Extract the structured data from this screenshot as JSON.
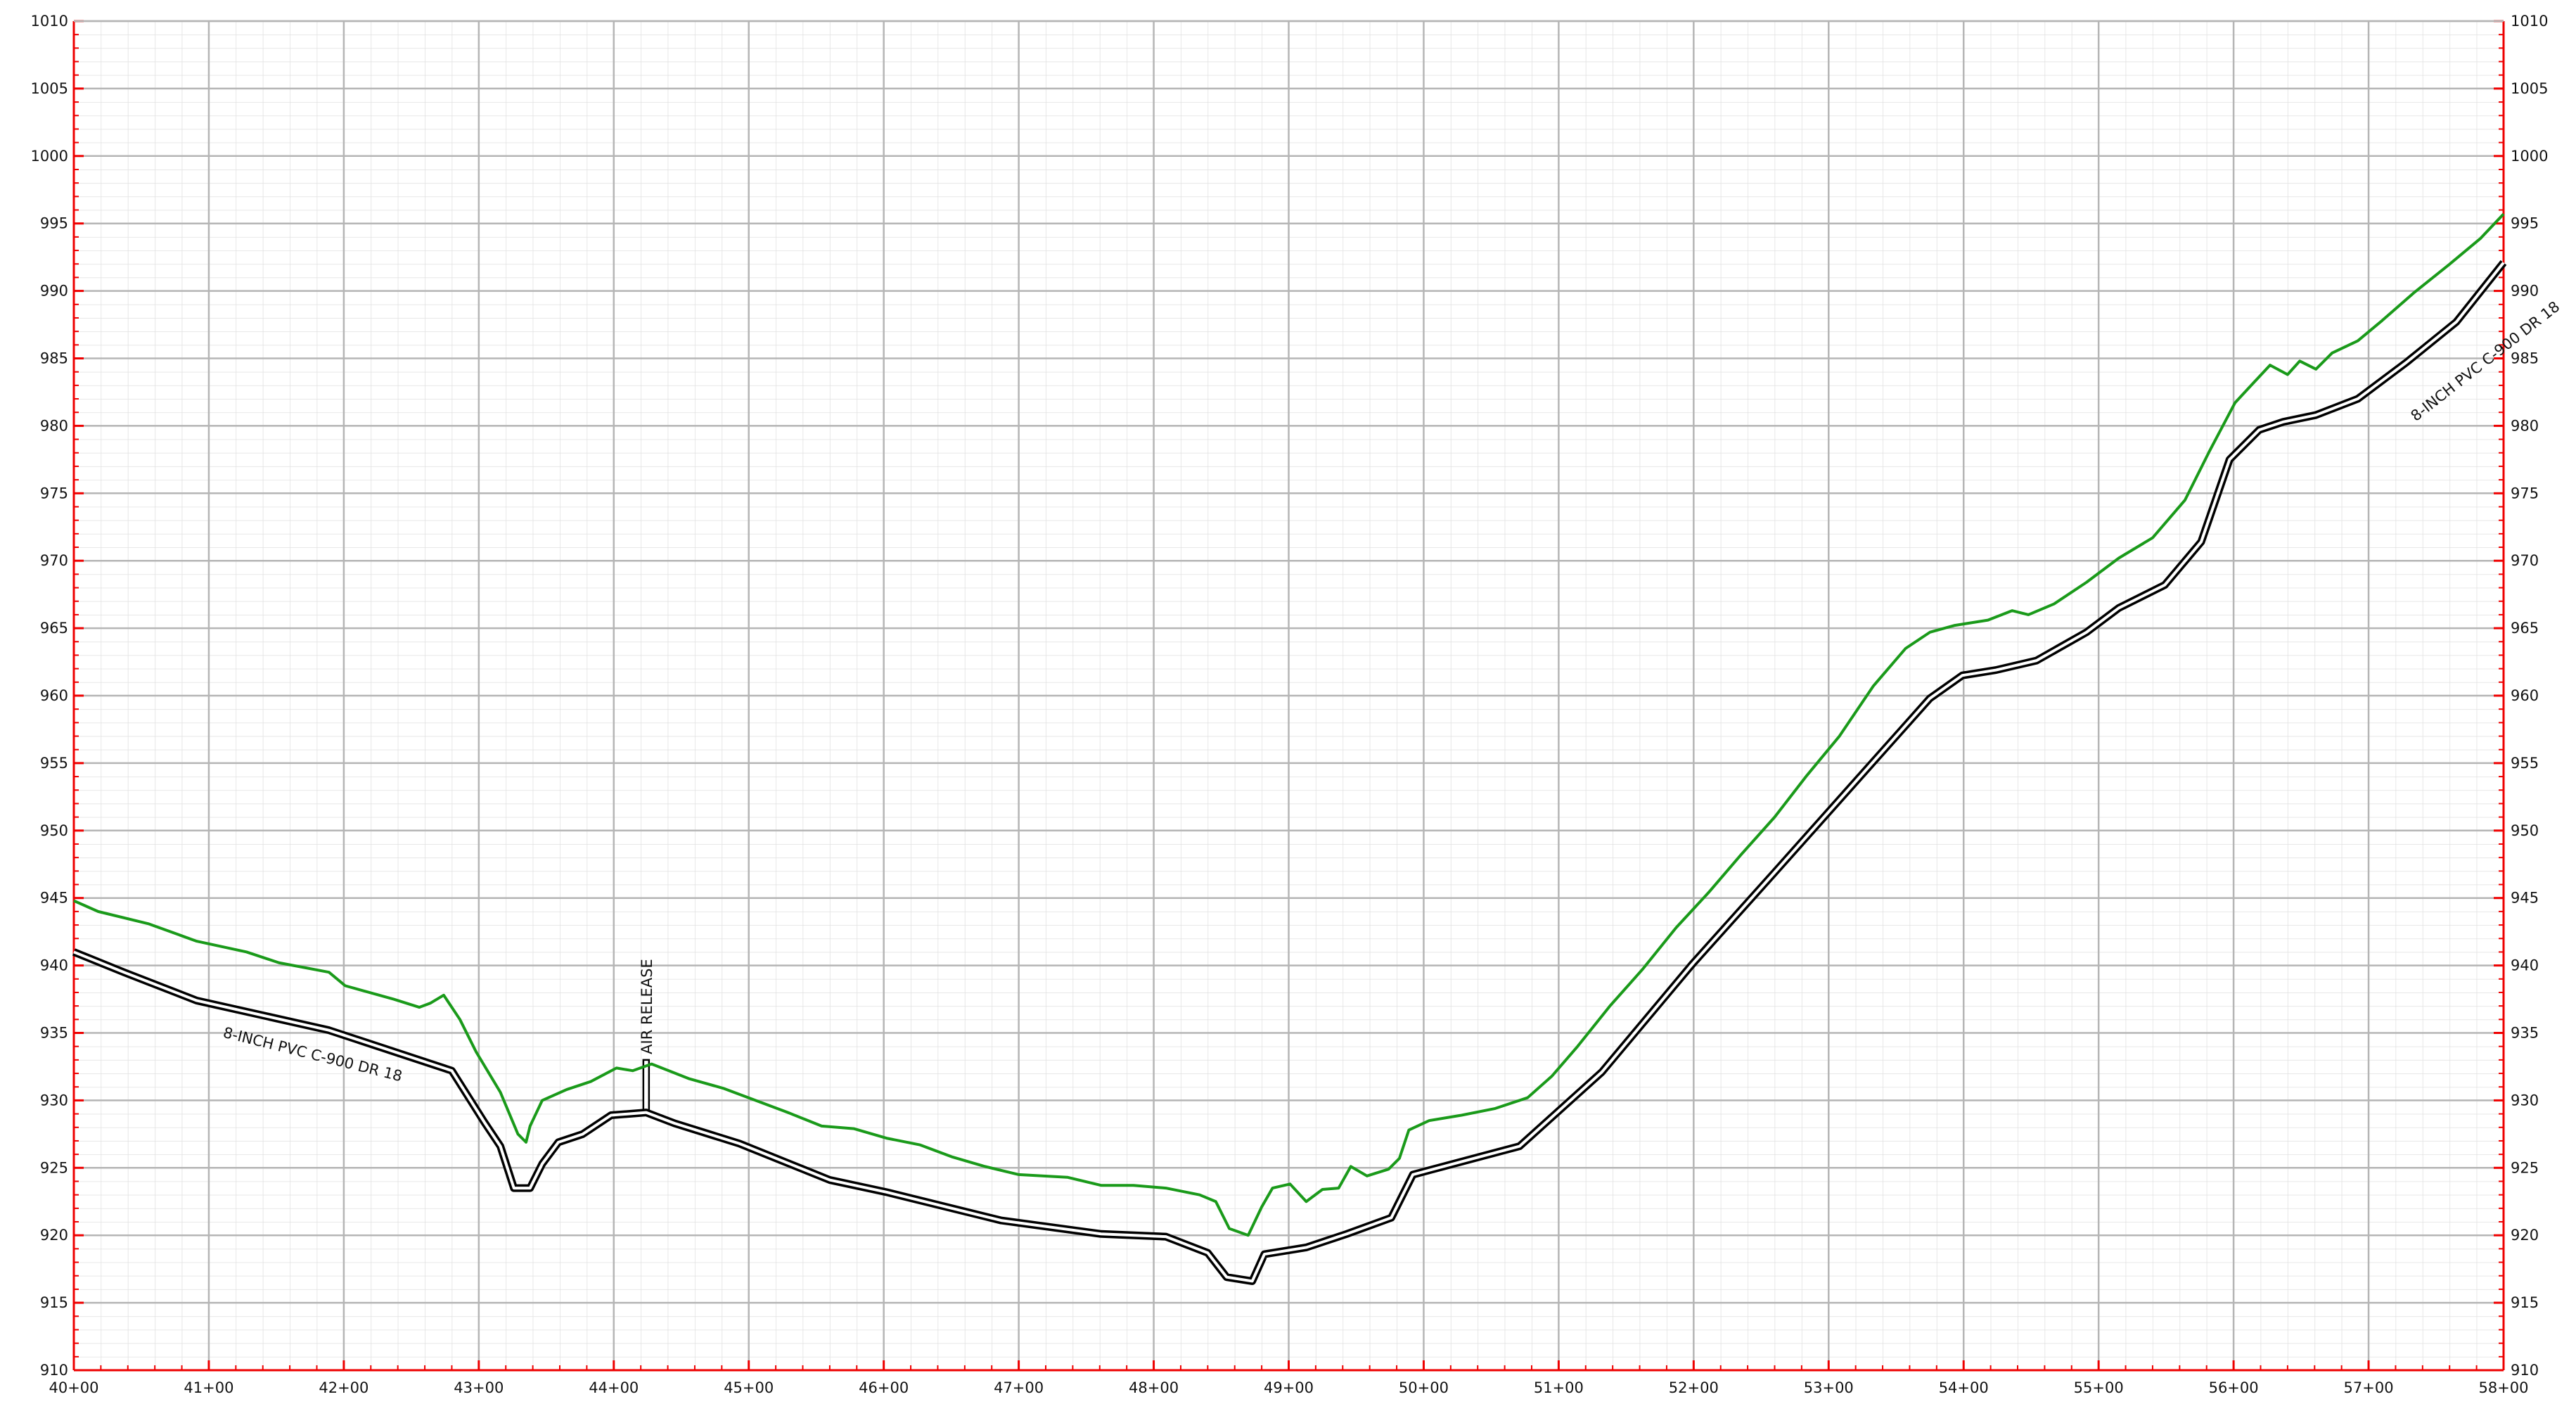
{
  "chart_data": {
    "type": "line",
    "xlim": [
      4000,
      5800
    ],
    "xticks": [
      {
        "value": 4000,
        "label": "40+00"
      },
      {
        "value": 4100,
        "label": "41+00"
      },
      {
        "value": 4200,
        "label": "42+00"
      },
      {
        "value": 4300,
        "label": "43+00"
      },
      {
        "value": 4400,
        "label": "44+00"
      },
      {
        "value": 4500,
        "label": "45+00"
      },
      {
        "value": 4600,
        "label": "46+00"
      },
      {
        "value": 4700,
        "label": "47+00"
      },
      {
        "value": 4800,
        "label": "48+00"
      },
      {
        "value": 4900,
        "label": "49+00"
      },
      {
        "value": 5000,
        "label": "50+00"
      },
      {
        "value": 5100,
        "label": "51+00"
      },
      {
        "value": 5200,
        "label": "52+00"
      },
      {
        "value": 5300,
        "label": "53+00"
      },
      {
        "value": 5400,
        "label": "54+00"
      },
      {
        "value": 5500,
        "label": "55+00"
      },
      {
        "value": 5600,
        "label": "56+00"
      },
      {
        "value": 5700,
        "label": "57+00"
      },
      {
        "value": 5800,
        "label": "58+00"
      }
    ],
    "ylim": [
      910,
      1010
    ],
    "yticks": [
      910,
      915,
      920,
      925,
      930,
      935,
      940,
      945,
      950,
      955,
      960,
      965,
      970,
      975,
      980,
      985,
      990,
      995,
      1000,
      1005,
      1010
    ],
    "grid": true,
    "series": [
      {
        "color": "#1a9a1a",
        "style": "single",
        "x": [
          4000,
          4018,
          4055,
          4091,
          4128,
          4152,
          4189,
          4201,
          4237,
          4256,
          4264,
          4274,
          4286,
          4298,
          4316,
          4329,
          4335,
          4338,
          4347,
          4365,
          4383,
          4402,
          4414,
          4428,
          4456,
          4481,
          4505,
          4529,
          4554,
          4578,
          4602,
          4627,
          4651,
          4675,
          4700,
          4736,
          4761,
          4785,
          4809,
          4834,
          4846,
          4856,
          4870,
          4880,
          4888,
          4901,
          4913,
          4925,
          4937,
          4946,
          4958,
          4974,
          4982,
          4989,
          5004,
          5028,
          5053,
          5077,
          5095,
          5114,
          5138,
          5162,
          5187,
          5211,
          5235,
          5260,
          5284,
          5308,
          5333,
          5357,
          5375,
          5393,
          5418,
          5436,
          5448,
          5467,
          5491,
          5515,
          5540,
          5564,
          5582,
          5601,
          5613,
          5627,
          5640,
          5649,
          5661,
          5673,
          5692,
          5710,
          5734,
          5759,
          5783,
          5800
        ],
        "values": [
          944.8,
          944,
          943.1,
          941.8,
          941,
          940.2,
          939.5,
          938.5,
          937.5,
          936.9,
          937.2,
          937.8,
          936,
          933.6,
          930.6,
          927.5,
          926.9,
          928.1,
          930,
          930.8,
          931.4,
          932.4,
          932.2,
          932.7,
          931.6,
          930.9,
          930,
          929.1,
          928.1,
          927.9,
          927.2,
          926.7,
          925.8,
          925.1,
          924.5,
          924.3,
          923.7,
          923.7,
          923.5,
          923,
          922.5,
          920.5,
          920,
          922.1,
          923.5,
          923.8,
          922.5,
          923.4,
          923.5,
          925.1,
          924.4,
          924.9,
          925.7,
          927.8,
          928.5,
          928.9,
          929.4,
          930.2,
          931.8,
          934,
          937,
          939.7,
          942.8,
          945.4,
          948.2,
          951,
          954.1,
          957,
          960.7,
          963.5,
          964.7,
          965.2,
          965.6,
          966.3,
          966,
          966.8,
          968.4,
          970.2,
          971.7,
          974.5,
          978.1,
          981.7,
          983,
          984.5,
          983.8,
          984.8,
          984.2,
          985.4,
          986.3,
          987.8,
          989.9,
          991.9,
          993.9,
          995.7
        ]
      },
      {
        "color": "#000000",
        "style": "double",
        "x": [
          4000,
          4037,
          4091,
          4189,
          4280,
          4304,
          4316,
          4326,
          4338,
          4347,
          4359,
          4377,
          4398,
          4424,
          4445,
          4493,
          4560,
          4602,
          4687,
          4761,
          4809,
          4840,
          4854,
          4873,
          4882,
          4913,
          4943,
          4976,
          4992,
          5071,
          5132,
          5199,
          5260,
          5375,
          5399,
          5424,
          5454,
          5491,
          5515,
          5549,
          5576,
          5597,
          5619,
          5637,
          5661,
          5692,
          5728,
          5765,
          5800
        ],
        "values": [
          941,
          939.5,
          937.4,
          935.2,
          932.2,
          928.4,
          926.6,
          923.5,
          923.5,
          925.3,
          926.9,
          927.5,
          928.9,
          929.1,
          928.3,
          926.8,
          924.1,
          923.2,
          921.1,
          920.1,
          919.9,
          918.7,
          916.9,
          916.6,
          918.6,
          919.1,
          920.1,
          921.3,
          924.5,
          926.6,
          932.1,
          940.1,
          946.9,
          959.8,
          961.5,
          961.9,
          962.6,
          964.7,
          966.5,
          968.2,
          971.4,
          977.5,
          979.7,
          980.3,
          980.8,
          982,
          984.7,
          987.7,
          992.1
        ]
      }
    ],
    "annotations": [
      {
        "text": "AIR RELEASE",
        "x": 4424,
        "top": 933
      },
      {
        "text": "8-INCH PVC C-900  DR 18"
      },
      {
        "text": "8-INCH PVC C-900 DR 18"
      }
    ]
  }
}
